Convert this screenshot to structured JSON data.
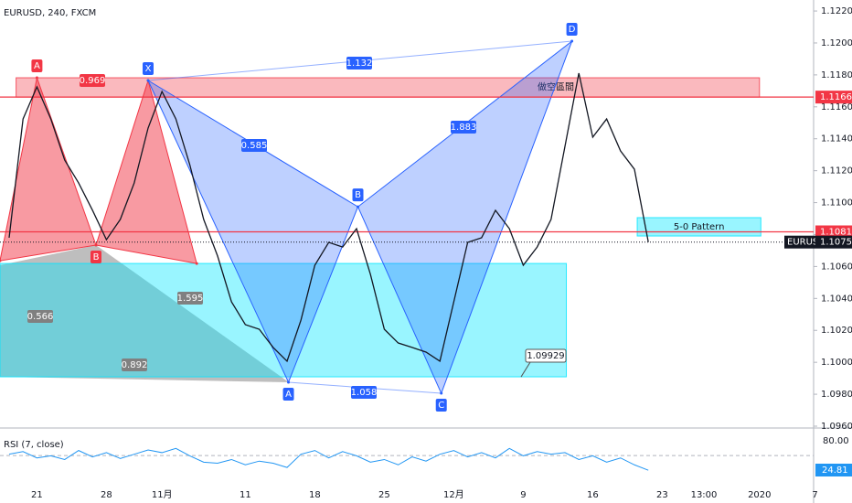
{
  "chart_data": [
    {
      "type": "line",
      "title": "EURUSD, 240, FXCM",
      "categories": [
        null,
        null,
        "21",
        null,
        null,
        null,
        null,
        "28",
        null,
        null,
        null,
        "11月",
        null,
        null,
        null,
        null,
        null,
        "11",
        null,
        null,
        null,
        null,
        "18",
        null,
        null,
        null,
        null,
        "25",
        null,
        null,
        null,
        null,
        "12月",
        null,
        null,
        null,
        null,
        "9",
        null,
        null,
        null,
        null,
        "16",
        null,
        null,
        null,
        null,
        "23",
        null,
        null,
        "13:00",
        null,
        null,
        null,
        "2020",
        null,
        null,
        null,
        "7"
      ],
      "series": [
        {
          "name": "EURUSD",
          "color": "#131722",
          "values": [
            1.1078,
            1.11524,
            1.11725,
            1.11524,
            1.11266,
            1.11123,
            1.10952,
            1.10768,
            1.10895,
            1.11123,
            1.11467,
            1.11696,
            1.11524,
            1.11238,
            1.10895,
            1.10666,
            1.10379,
            1.10236,
            1.10207,
            1.10093,
            1.10007,
            1.10264,
            1.10608,
            1.10751,
            1.10722,
            1.10837,
            1.10551,
            1.10207,
            1.10121,
            1.10093,
            1.10064,
            1.10007,
            1.10379,
            1.10751,
            1.1078,
            1.10952,
            1.10837,
            1.10608,
            1.10722,
            1.10895,
            1.11352,
            1.11811,
            1.1141,
            1.11524,
            1.11324,
            1.11209,
            1.10753,
            null,
            null,
            null,
            null,
            null,
            null,
            null,
            null,
            null,
            null,
            null,
            null
          ]
        }
      ],
      "ylim": [
        1.096,
        1.12269
      ],
      "yticks": [
        {
          "value": 1.096,
          "label": "1.09600"
        },
        {
          "value": 1.098,
          "label": "1.09800"
        },
        {
          "value": 1.1,
          "label": "1.10000"
        },
        {
          "value": 1.102,
          "label": "1.10200"
        },
        {
          "value": 1.104,
          "label": "1.10400"
        },
        {
          "value": 1.106,
          "label": "1.10600"
        },
        {
          "value": 1.108,
          "label": "1.10800"
        },
        {
          "value": 1.11,
          "label": "1.11000"
        },
        {
          "value": 1.112,
          "label": "1.11200"
        },
        {
          "value": 1.114,
          "label": "1.11400"
        },
        {
          "value": 1.116,
          "label": "1.11600"
        },
        {
          "value": 1.118,
          "label": "1.11800"
        },
        {
          "value": 1.12,
          "label": "1.12000"
        },
        {
          "value": 1.122,
          "label": "1.12200"
        }
      ],
      "levels": [
        1.11661,
        1.10817
      ],
      "zones": [
        {
          "label": "做空區間",
          "color": "#f23645",
          "range": [
            1.11661,
            1.11782
          ],
          "x": [
            0.5,
            54
          ]
        },
        {
          "label": "1.09929",
          "color": "#00e5ff",
          "range": [
            1.09909,
            1.10619
          ],
          "x": [
            -0.66,
            40.1
          ]
        },
        {
          "label": "5-0 Pattern",
          "color": "#00e5ff",
          "range": [
            1.10791,
            1.10906
          ],
          "x": [
            45.2,
            54.1
          ]
        }
      ],
      "patterns": [
        {
          "color": "#f23645",
          "points": [
            {
              "label": null,
              "x": -0.66,
              "y": 1.10636
            },
            {
              "label": "A",
              "x": 2,
              "y": 1.11782
            },
            {
              "label": "B",
              "x": 6.25,
              "y": 1.10734
            },
            {
              "label": null,
              "x": 10,
              "y": 1.11765
            },
            {
              "label": null,
              "x": 13.5,
              "y": 1.10619
            }
          ]
        },
        {
          "color": "#2962ff",
          "points": [
            {
              "label": "X",
              "x": 10,
              "y": 1.11765
            },
            {
              "label": "A",
              "x": 20.1,
              "y": 1.09875
            },
            {
              "label": "B",
              "x": 25.1,
              "y": 1.10974
            },
            {
              "label": "C",
              "x": 31.1,
              "y": 1.09806
            },
            {
              "label": "D",
              "x": 40.5,
              "y": 1.12011
            }
          ]
        }
      ],
      "ratios": [
        0.969,
        1.132,
        0.585,
        1.883,
        1.058,
        0.566,
        1.595,
        0.892
      ]
    },
    {
      "type": "line",
      "title": "RSI (7, close)",
      "series": [
        {
          "color": "#2196f3",
          "values": [
            55,
            60,
            48,
            52,
            45,
            62,
            50,
            58,
            47,
            55,
            63,
            58,
            66,
            52,
            40,
            38,
            45,
            35,
            42,
            38,
            30,
            55,
            62,
            48,
            60,
            52,
            40,
            45,
            35,
            50,
            42,
            55,
            62,
            50,
            58,
            48,
            66,
            52,
            60,
            55,
            58,
            45,
            52,
            40,
            48,
            35,
            24.81,
            null,
            null,
            null,
            null,
            null,
            null,
            null,
            null,
            null,
            null,
            null,
            null
          ]
        }
      ],
      "ylim": [
        -37,
        101
      ],
      "yticks": [
        {
          "value": 80,
          "label": "80.00"
        }
      ]
    }
  ]
}
